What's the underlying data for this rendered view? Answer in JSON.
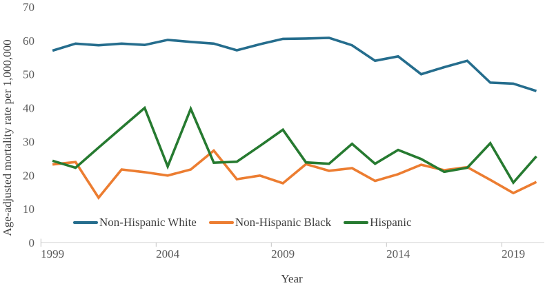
{
  "figure": {
    "y_axis_title": "Age-adjusted mortality rate per 1,000,000",
    "x_axis_title": "Year"
  },
  "colors": {
    "axis_line": "#D9D9D9",
    "tick_mark": "#D0D0D0",
    "tick_label": "#595959",
    "axis_title_text": "#404040",
    "background": "#FFFFFF"
  },
  "chart_data": {
    "type": "line",
    "title": "",
    "xlabel": "Year",
    "ylabel": "Age-adjusted mortality rate per 1,000,000",
    "ylim": [
      0,
      70
    ],
    "yticks": [
      0,
      10,
      20,
      30,
      40,
      50,
      60,
      70
    ],
    "xticks": [
      1999,
      2004,
      2009,
      2014,
      2019
    ],
    "grid": false,
    "legend_position": "bottom-inside",
    "x": [
      1999,
      2000,
      2001,
      2002,
      2003,
      2004,
      2005,
      2006,
      2007,
      2008,
      2009,
      2010,
      2011,
      2012,
      2013,
      2014,
      2015,
      2016,
      2017,
      2018,
      2019,
      2020
    ],
    "series": [
      {
        "name": "Non-Hispanic White",
        "color": "#256D8D",
        "values": [
          57.0,
          59.1,
          58.6,
          59.1,
          58.7,
          60.2,
          59.6,
          59.1,
          57.1,
          58.9,
          60.5,
          60.6,
          60.8,
          58.6,
          54.0,
          55.3,
          50.0,
          52.1,
          54.0,
          47.5,
          47.2,
          45.0
        ]
      },
      {
        "name": "Non-Hispanic Black",
        "color": "#EC7D31",
        "values": [
          23.2,
          23.9,
          13.3,
          21.7,
          20.9,
          19.9,
          21.7,
          27.3,
          18.8,
          19.9,
          17.6,
          23.3,
          21.3,
          22.1,
          18.3,
          20.3,
          23.1,
          21.5,
          22.4,
          18.6,
          14.7,
          18.0
        ]
      },
      {
        "name": "Hispanic",
        "color": "#267A30",
        "values": [
          24.3,
          22.2,
          28.2,
          34.1,
          40.0,
          22.6,
          39.7,
          23.7,
          24.0,
          28.7,
          33.5,
          23.8,
          23.4,
          29.3,
          23.4,
          27.5,
          24.8,
          21.0,
          22.2,
          29.5,
          17.8,
          25.6
        ]
      }
    ]
  }
}
